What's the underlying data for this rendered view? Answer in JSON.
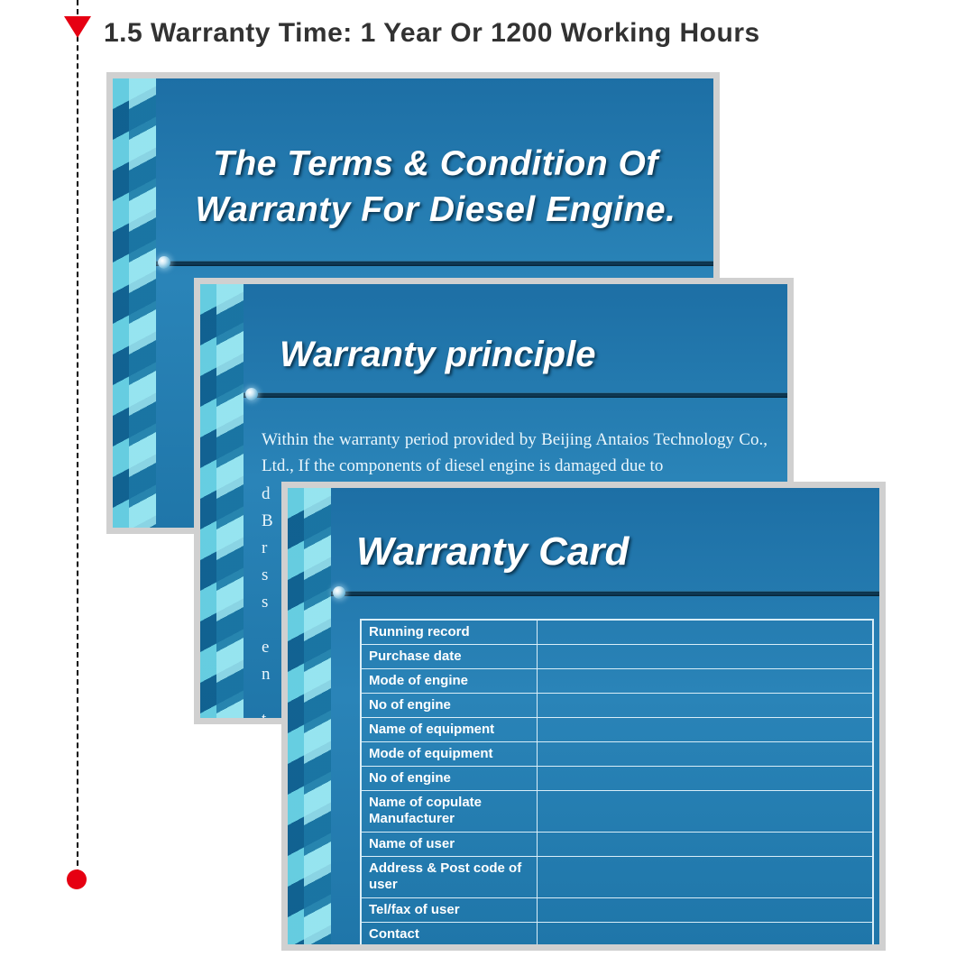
{
  "accent_color": "#e60012",
  "heading_color": "#323232",
  "slide_border_color": "#d0d0d0",
  "slide_bg_gradient": [
    "#1d6fa5",
    "#2a84b8",
    "#1f76a9"
  ],
  "table_border_color": "#d9eef8",
  "heading": "1.5 Warranty Time:  1 Year Or 1200 Working Hours",
  "slide1": {
    "title": "The Terms & Condition Of\nWarranty For Diesel Engine."
  },
  "slide2": {
    "title": "Warranty principle",
    "body_para": "       Within the warranty period provided by Beijing Antaios Technology Co., Ltd., If the components of diesel engine is damaged due to",
    "frag_d": "d",
    "frag_b": "B",
    "frag_r": "r",
    "frag_s1": "s",
    "frag_s2": "s",
    "frag_e": "e",
    "frag_n": "n",
    "frag_t": "t"
  },
  "slide3": {
    "title": "Warranty Card",
    "rows": [
      "Running record",
      "Purchase date",
      "Mode of engine",
      "No of engine",
      "Name of equipment",
      "Mode of equipment",
      "No of engine",
      "Name of copulate\nManufacturer",
      "Name of user",
      "Address\n& Post code of user",
      "Tel/fax of user",
      "Contact"
    ]
  }
}
